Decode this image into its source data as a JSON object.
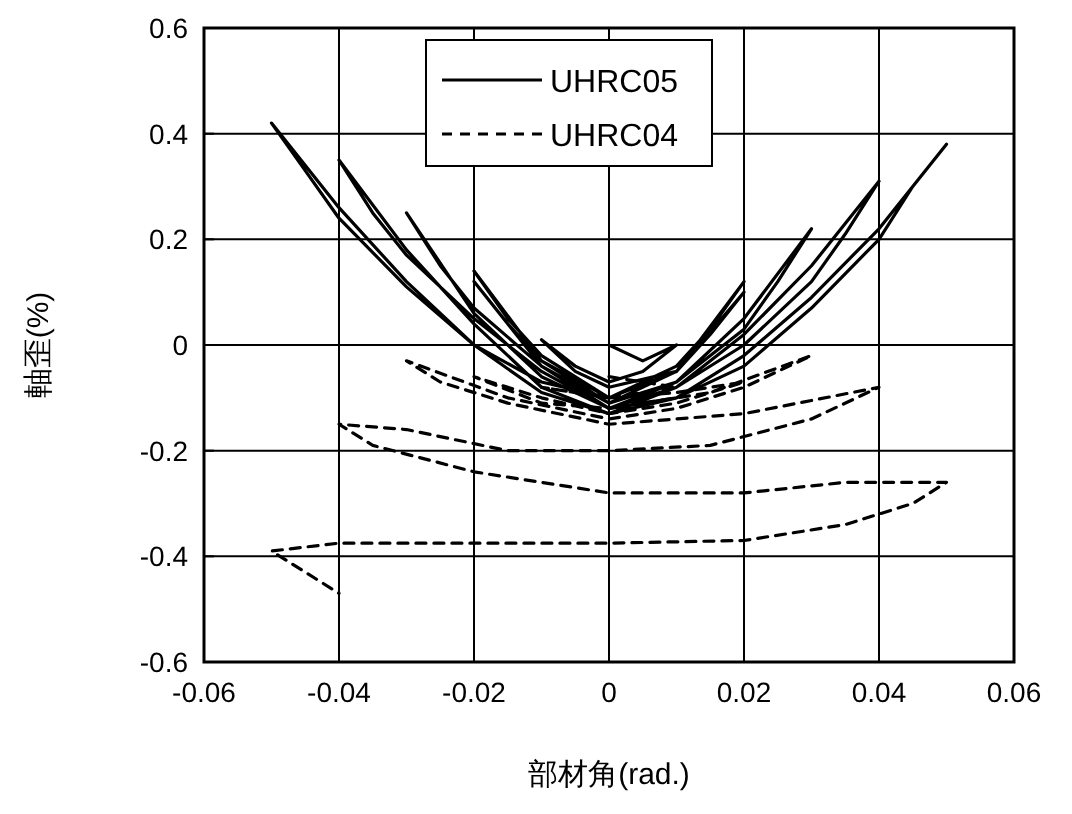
{
  "chart_data": {
    "type": "line",
    "xlabel": "部材角(rad.)",
    "ylabel": "軸歪(%)",
    "xlim": [
      -0.06,
      0.06
    ],
    "xticks": [
      -0.06,
      -0.04,
      -0.02,
      0,
      0.02,
      0.04,
      0.06
    ],
    "ylim": [
      -0.6,
      0.6
    ],
    "yticks": [
      -0.6,
      -0.4,
      -0.2,
      0,
      0.2,
      0.4,
      0.6
    ],
    "grid": true,
    "legend": "top",
    "marker": "none",
    "series": [
      {
        "name": "UHRC05",
        "color": "#000000",
        "line_style": "solid",
        "x": [
          0,
          0.005,
          0.01,
          0.005,
          0,
          -0.005,
          -0.01,
          -0.005,
          0,
          0.01,
          0.02,
          0.015,
          0.01,
          0,
          -0.01,
          -0.02,
          -0.015,
          -0.01,
          0,
          0.01,
          0.02,
          0.015,
          0.01,
          0,
          -0.01,
          -0.02,
          -0.015,
          -0.01,
          0,
          0.01,
          0.02,
          0.03,
          0.025,
          0.02,
          0.01,
          0,
          -0.01,
          -0.02,
          -0.03,
          -0.025,
          -0.02,
          -0.01,
          0,
          0.01,
          0.02,
          0.03,
          0.04,
          0.035,
          0.03,
          0.02,
          0.01,
          0,
          -0.01,
          -0.02,
          -0.03,
          -0.04,
          -0.035,
          -0.03,
          -0.02,
          -0.01,
          0,
          0.01,
          0.02,
          0.03,
          0.04,
          0.05,
          0.045,
          0.04,
          0.03,
          0.02,
          0.01,
          0,
          -0.01,
          -0.02,
          -0.03,
          -0.04,
          -0.05,
          -0.045,
          -0.04,
          -0.03,
          -0.02,
          -0.01,
          0
        ],
        "values": [
          0,
          -0.03,
          0.0,
          -0.05,
          -0.07,
          -0.04,
          0.01,
          -0.05,
          -0.08,
          -0.05,
          0.12,
          0.03,
          -0.04,
          -0.1,
          -0.03,
          0.14,
          0.05,
          -0.02,
          -0.1,
          -0.05,
          0.1,
          0.02,
          -0.05,
          -0.11,
          -0.04,
          0.12,
          0.04,
          -0.03,
          -0.11,
          -0.07,
          0.05,
          0.22,
          0.12,
          0.03,
          -0.07,
          -0.12,
          -0.06,
          0.06,
          0.25,
          0.15,
          0.07,
          -0.04,
          -0.12,
          -0.08,
          0.02,
          0.15,
          0.31,
          0.21,
          0.12,
          0.0,
          -0.08,
          -0.13,
          -0.08,
          0.04,
          0.18,
          0.35,
          0.25,
          0.17,
          0.05,
          -0.05,
          -0.12,
          -0.1,
          -0.02,
          0.09,
          0.22,
          0.38,
          0.3,
          0.2,
          0.07,
          -0.04,
          -0.1,
          -0.13,
          -0.09,
          0.0,
          0.12,
          0.26,
          0.42,
          0.33,
          0.24,
          0.11,
          0.0,
          -0.07,
          -0.1
        ]
      },
      {
        "name": "UHRC04",
        "color": "#000000",
        "line_style": "dashed",
        "x": [
          0,
          0.01,
          0,
          -0.01,
          0,
          0.01,
          0.02,
          0.01,
          0,
          -0.01,
          -0.02,
          -0.01,
          0,
          0.015,
          0.03,
          0.02,
          0.01,
          0,
          -0.015,
          -0.03,
          -0.025,
          -0.015,
          0,
          0.02,
          0.04,
          0.03,
          0.015,
          0,
          -0.015,
          -0.03,
          -0.04,
          -0.035,
          -0.02,
          0,
          0.02,
          0.035,
          0.05,
          0.045,
          0.035,
          0.02,
          0,
          -0.04,
          -0.05,
          -0.045,
          -0.04
        ],
        "values": [
          -0.06,
          -0.08,
          -0.1,
          -0.08,
          -0.1,
          -0.09,
          -0.07,
          -0.11,
          -0.13,
          -0.1,
          -0.06,
          -0.11,
          -0.12,
          -0.09,
          -0.02,
          -0.08,
          -0.12,
          -0.14,
          -0.1,
          -0.03,
          -0.07,
          -0.11,
          -0.15,
          -0.13,
          -0.08,
          -0.14,
          -0.19,
          -0.2,
          -0.2,
          -0.16,
          -0.15,
          -0.19,
          -0.24,
          -0.28,
          -0.28,
          -0.26,
          -0.26,
          -0.3,
          -0.34,
          -0.37,
          -0.375,
          -0.375,
          -0.39,
          -0.43,
          -0.47
        ]
      }
    ]
  }
}
